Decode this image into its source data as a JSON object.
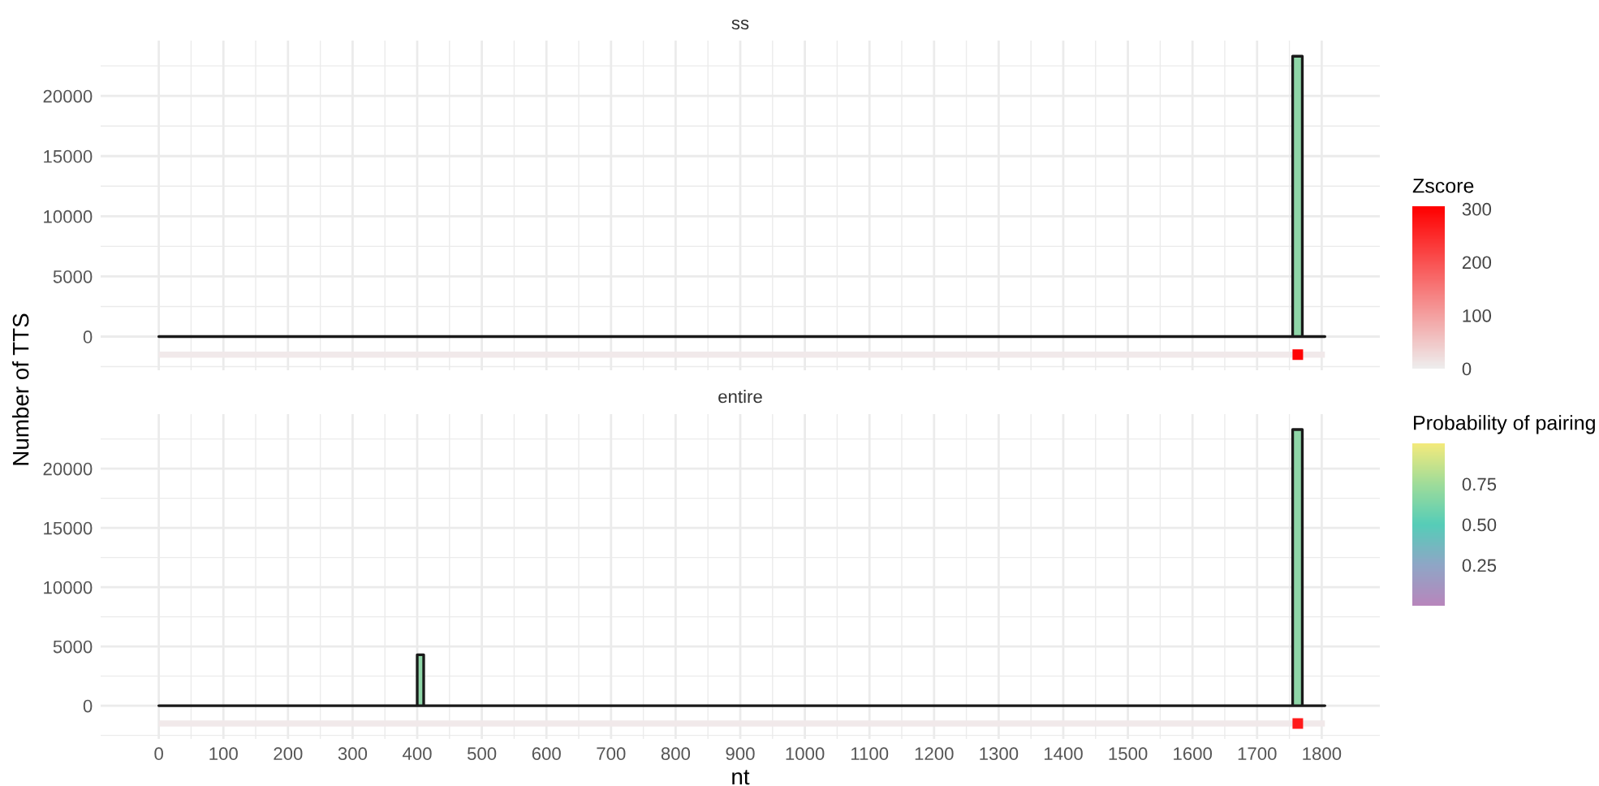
{
  "chart_data": [
    {
      "type": "area",
      "title": "ss",
      "ylabel": "Number of TTS",
      "tick_labels": "y",
      "grid": true,
      "x": [
        0,
        1755,
        1770,
        1805
      ],
      "values": [
        0,
        23300,
        0,
        0
      ],
      "color": "#8fd6a8",
      "series": [
        {
          "type": "scatter",
          "marker": "square",
          "x": [
            1763
          ],
          "values": [
            -1500
          ],
          "color": "#ff0404"
        }
      ],
      "bands": [
        {
          "axis": "y",
          "from": -1750,
          "to": -1250,
          "color": "#f1e9ea"
        }
      ],
      "xlim": [
        -90,
        1890
      ],
      "ylim": [
        -2800,
        24600
      ],
      "xticks": [
        0,
        100,
        200,
        300,
        400,
        500,
        600,
        700,
        800,
        900,
        1000,
        1100,
        1200,
        1300,
        1400,
        1500,
        1600,
        1700,
        1800
      ],
      "yticks": [
        0,
        5000,
        10000,
        15000,
        20000
      ],
      "clabel": "Zscore",
      "clim": [
        0,
        305
      ],
      "cticks": [
        0,
        100,
        200,
        300
      ]
    },
    {
      "type": "area",
      "title": "entire",
      "xlabel": "nt",
      "grid": true,
      "x": [
        0,
        400,
        410,
        1755,
        1770,
        1805
      ],
      "values": [
        0,
        4300,
        0,
        23300,
        0,
        0
      ],
      "color": "#8fd6a8",
      "series": [
        {
          "type": "scatter",
          "marker": "square",
          "x": [
            1763
          ],
          "values": [
            -1500
          ],
          "color": "#ff1a1a"
        }
      ],
      "bands": [
        {
          "axis": "y",
          "from": -1750,
          "to": -1250,
          "color": "#f1e9ea"
        }
      ],
      "xlim": [
        -90,
        1890
      ],
      "ylim": [
        -2800,
        24600
      ],
      "xticks": [
        0,
        100,
        200,
        300,
        400,
        500,
        600,
        700,
        800,
        900,
        1000,
        1100,
        1200,
        1300,
        1400,
        1500,
        1600,
        1700,
        1800
      ],
      "yticks": [
        0,
        5000,
        10000,
        15000,
        20000
      ],
      "clabel": "Probability of pairing",
      "clim": [
        0,
        1
      ],
      "cticks": [
        0.25,
        {
          "value": 0.5,
          "label": "0.50"
        },
        0.75
      ]
    }
  ]
}
